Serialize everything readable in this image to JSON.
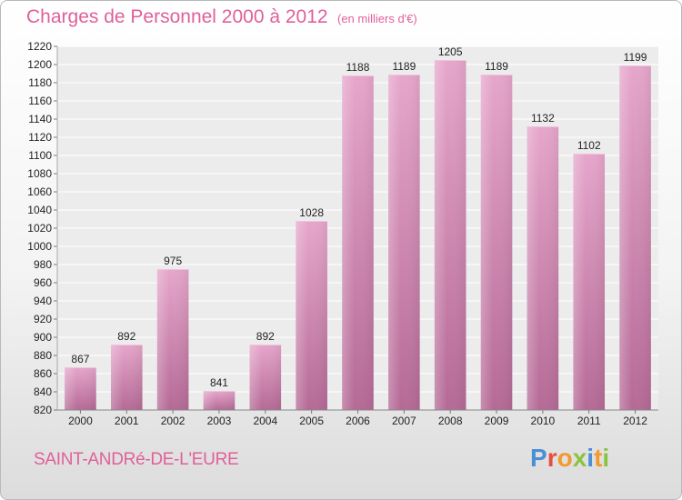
{
  "header": {
    "title": "Charges de Personnel 2000 à 2012",
    "subtitle": "(en milliers d'€)"
  },
  "footer": {
    "commune": "SAINT-ANDRé-DE-L'EURE",
    "logo_text": "Proxiti"
  },
  "colors": {
    "accent": "#e0609a",
    "bar": "#d98bb7",
    "bar_dark": "#b56a96"
  },
  "chart_data": {
    "type": "bar",
    "title": "Charges de Personnel 2000 à 2012",
    "subtitle": "(en milliers d'€)",
    "xlabel": "",
    "ylabel": "",
    "categories": [
      "2000",
      "2001",
      "2002",
      "2003",
      "2004",
      "2005",
      "2006",
      "2007",
      "2008",
      "2009",
      "2010",
      "2011",
      "2012"
    ],
    "values": [
      867,
      892,
      975,
      841,
      892,
      1028,
      1188,
      1189,
      1205,
      1189,
      1132,
      1102,
      1199
    ],
    "ylim": [
      820,
      1220
    ],
    "yticks": [
      820,
      840,
      860,
      880,
      900,
      920,
      940,
      960,
      980,
      1000,
      1020,
      1040,
      1060,
      1080,
      1100,
      1120,
      1140,
      1160,
      1180,
      1200,
      1220
    ],
    "grid": true,
    "legend": "none"
  }
}
